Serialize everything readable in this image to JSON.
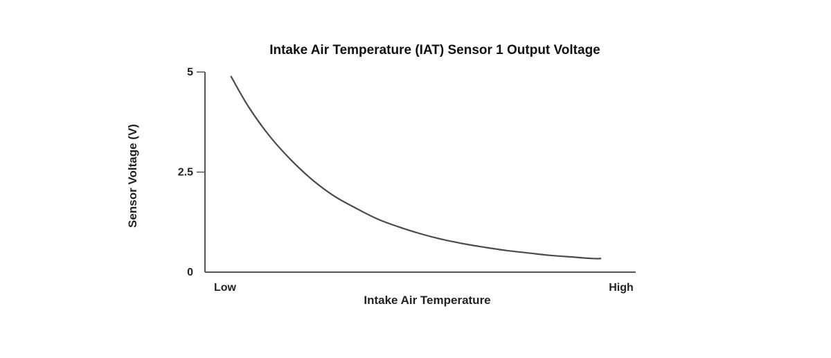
{
  "chart_data": {
    "type": "line",
    "title": "Intake Air Temperature (IAT) Sensor 1 Output Voltage",
    "xlabel": "Intake Air Temperature",
    "ylabel": "Sensor Voltage (V)",
    "x_tick_labels": [
      "Low",
      "High"
    ],
    "y_ticks": [
      {
        "value": 0,
        "label": "0"
      },
      {
        "value": 2.5,
        "label": "2.5"
      },
      {
        "value": 5,
        "label": "5"
      }
    ],
    "ylim": [
      0,
      5
    ],
    "xlim": [
      0,
      1
    ],
    "grid": false,
    "series": [
      {
        "x": [
          0.06,
          0.1,
          0.15,
          0.2,
          0.25,
          0.3,
          0.35,
          0.4,
          0.45,
          0.5,
          0.55,
          0.6,
          0.65,
          0.7,
          0.75,
          0.8,
          0.85,
          0.9,
          0.92
        ],
        "values": [
          4.9,
          4.15,
          3.4,
          2.8,
          2.3,
          1.9,
          1.6,
          1.33,
          1.13,
          0.96,
          0.82,
          0.71,
          0.62,
          0.54,
          0.48,
          0.42,
          0.38,
          0.34,
          0.34
        ]
      }
    ],
    "colors": {
      "line": "#4a4a4a",
      "axis": "#555555"
    }
  }
}
